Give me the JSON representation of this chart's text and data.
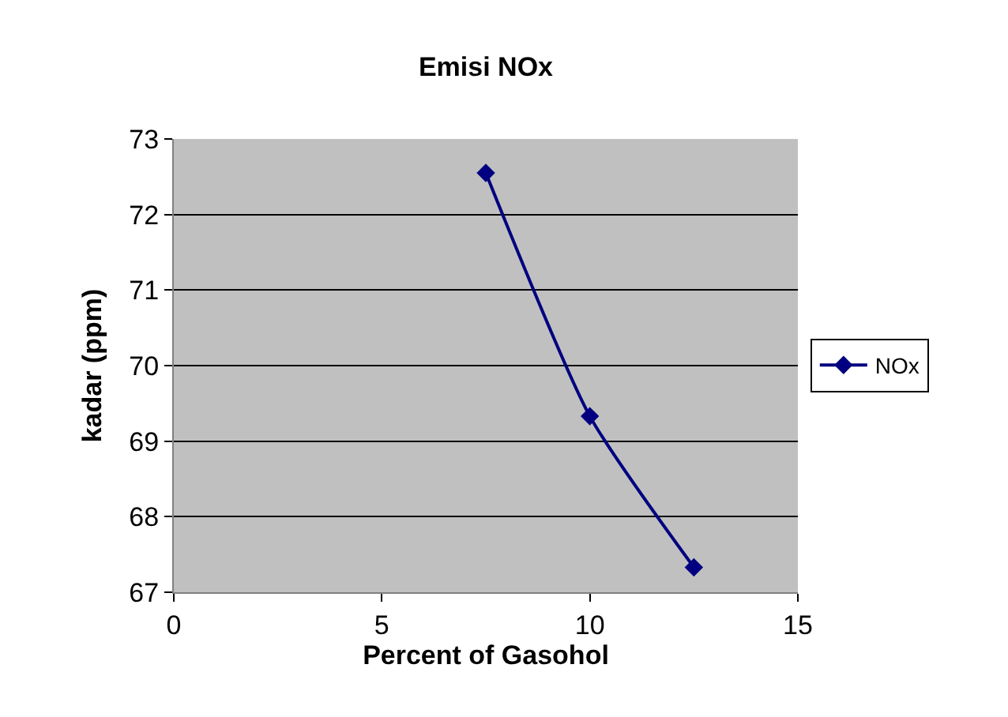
{
  "chart_data": {
    "type": "line",
    "title": "Emisi NOx",
    "xlabel": "Percent of Gasohol",
    "ylabel": "kadar (ppm)",
    "x": [
      7.5,
      10,
      12.5
    ],
    "series": [
      {
        "name": "NOx",
        "color": "#000080",
        "values": [
          72.55,
          69.33,
          67.33
        ]
      }
    ],
    "xlim": [
      0,
      15
    ],
    "xticks": [
      0,
      5,
      10,
      15
    ],
    "ylim": [
      67,
      73
    ],
    "yticks": [
      67,
      68,
      69,
      70,
      71,
      72,
      73
    ],
    "grid": "y",
    "legend": "right",
    "marker": "diamond",
    "line_style": "solid"
  }
}
